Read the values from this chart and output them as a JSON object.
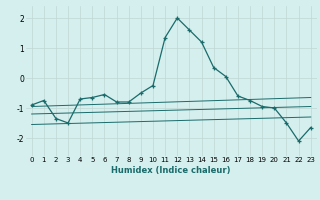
{
  "xlabel": "Humidex (Indice chaleur)",
  "ylabel": "",
  "bg_color": "#d4efed",
  "line_color": "#1a6b6b",
  "grid_color": "#c0d8d4",
  "xlim": [
    -0.5,
    23.5
  ],
  "ylim": [
    -2.6,
    2.4
  ],
  "yticks": [
    -2,
    -1,
    0,
    1,
    2
  ],
  "xticks": [
    0,
    1,
    2,
    3,
    4,
    5,
    6,
    7,
    8,
    9,
    10,
    11,
    12,
    13,
    14,
    15,
    16,
    17,
    18,
    19,
    20,
    21,
    22,
    23
  ],
  "main_line_x": [
    0,
    1,
    2,
    3,
    4,
    5,
    6,
    7,
    8,
    9,
    10,
    11,
    12,
    13,
    14,
    15,
    16,
    17,
    18,
    19,
    20,
    21,
    22,
    23
  ],
  "main_line_y": [
    -0.9,
    -0.75,
    -1.35,
    -1.5,
    -0.7,
    -0.65,
    -0.55,
    -0.8,
    -0.8,
    -0.5,
    -0.25,
    1.35,
    2.0,
    1.6,
    1.2,
    0.35,
    0.05,
    -0.6,
    -0.75,
    -0.95,
    -1.0,
    -1.5,
    -2.1,
    -1.65
  ],
  "line2_x": [
    0,
    23
  ],
  "line2_y": [
    -0.95,
    -0.65
  ],
  "line3_x": [
    0,
    23
  ],
  "line3_y": [
    -1.2,
    -0.95
  ],
  "line4_x": [
    0,
    23
  ],
  "line4_y": [
    -1.55,
    -1.3
  ],
  "tick_fontsize": 5.0,
  "xlabel_fontsize": 6.0
}
